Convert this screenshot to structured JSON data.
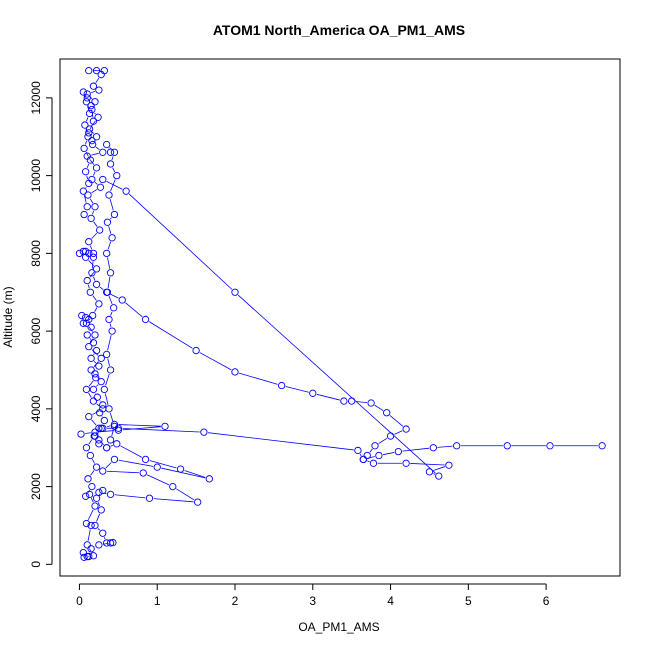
{
  "chart_data": {
    "type": "scatter",
    "title": "ATOM1 North_America OA_PM1_AMS",
    "xlabel": "OA_PM1_AMS",
    "ylabel": "Altitude (m)",
    "xlim": [
      -0.25,
      6.95
    ],
    "ylim": [
      -300,
      13000
    ],
    "xticks": [
      0,
      1,
      2,
      3,
      4,
      5,
      6
    ],
    "yticks": [
      0,
      2000,
      4000,
      6000,
      8000,
      10000,
      12000
    ],
    "grid": false,
    "legend": "none",
    "marker": "open-circle",
    "connected": true,
    "color": "#0000ff",
    "series": [
      {
        "points": [
          [
            0.12,
            200
          ],
          [
            0.06,
            180
          ],
          [
            0.18,
            220
          ],
          [
            0.1,
            500
          ],
          [
            0.15,
            1000
          ],
          [
            0.09,
            1050
          ],
          [
            0.2,
            1500
          ],
          [
            0.13,
            1800
          ],
          [
            0.08,
            1750
          ],
          [
            0.16,
            2000
          ],
          [
            0.11,
            2200
          ],
          [
            0.22,
            2500
          ],
          [
            0.14,
            2800
          ],
          [
            0.09,
            3000
          ],
          [
            0.19,
            3300
          ],
          [
            0.25,
            3500
          ],
          [
            0.12,
            3800
          ],
          [
            0.3,
            4000
          ],
          [
            0.18,
            4200
          ],
          [
            0.09,
            4500
          ],
          [
            0.21,
            4800
          ],
          [
            0.15,
            5000
          ],
          [
            0.28,
            5300
          ],
          [
            0.12,
            5600
          ],
          [
            0.2,
            5900
          ],
          [
            0.09,
            6200
          ],
          [
            0.17,
            6400
          ],
          [
            0.25,
            6700
          ],
          [
            0.14,
            7000
          ],
          [
            0.1,
            7300
          ],
          [
            0.22,
            7600
          ],
          [
            0.08,
            7900
          ],
          [
            0.18,
            8000
          ],
          [
            0.12,
            8300
          ],
          [
            0.26,
            8600
          ],
          [
            0.15,
            8900
          ],
          [
            0.2,
            9200
          ],
          [
            0.11,
            9500
          ],
          [
            0.27,
            9700
          ],
          [
            0.16,
            9900
          ],
          [
            0.22,
            10200
          ],
          [
            0.1,
            10500
          ],
          [
            0.3,
            10600
          ],
          [
            0.17,
            10800
          ],
          [
            0.22,
            11000
          ],
          [
            0.13,
            11200
          ],
          [
            0.24,
            11500
          ],
          [
            0.16,
            11700
          ],
          [
            0.2,
            11900
          ],
          [
            0.1,
            12100
          ],
          [
            0.25,
            12200
          ],
          [
            0.18,
            12300
          ],
          [
            0.28,
            12600
          ],
          [
            0.22,
            12700
          ],
          [
            0.12,
            12700
          ],
          [
            0.32,
            12700
          ]
        ]
      },
      {
        "points": [
          [
            0.08,
            8050
          ],
          [
            0.0,
            8000
          ],
          [
            0.05,
            8050
          ],
          [
            0.12,
            8000
          ],
          [
            0.18,
            7900
          ],
          [
            0.16,
            7500
          ],
          [
            0.22,
            7200
          ],
          [
            0.35,
            7000
          ],
          [
            0.55,
            6800
          ],
          [
            0.85,
            6300
          ],
          [
            1.5,
            5500
          ],
          [
            2.0,
            4950
          ],
          [
            2.6,
            4600
          ],
          [
            3.0,
            4400
          ],
          [
            3.4,
            4200
          ],
          [
            3.5,
            4200
          ],
          [
            3.75,
            4150
          ],
          [
            3.95,
            3900
          ],
          [
            4.2,
            3480
          ],
          [
            4.0,
            3300
          ],
          [
            3.8,
            3050
          ],
          [
            3.7,
            2800
          ],
          [
            3.65,
            2700
          ],
          [
            3.85,
            2800
          ],
          [
            4.1,
            2900
          ],
          [
            4.55,
            3000
          ],
          [
            4.85,
            3050
          ],
          [
            5.5,
            3050
          ],
          [
            6.05,
            3050
          ],
          [
            6.72,
            3050
          ]
        ]
      },
      {
        "points": [
          [
            0.02,
            3350
          ],
          [
            0.2,
            3400
          ],
          [
            0.5,
            3450
          ],
          [
            1.1,
            3550
          ],
          [
            0.45,
            3600
          ],
          [
            0.3,
            3500
          ],
          [
            0.5,
            3500
          ],
          [
            1.6,
            3400
          ],
          [
            3.58,
            2930
          ],
          [
            3.65,
            2700
          ],
          [
            3.78,
            2600
          ],
          [
            4.2,
            2600
          ],
          [
            4.75,
            2550
          ],
          [
            4.5,
            2380
          ],
          [
            4.62,
            2270
          ],
          [
            2.0,
            7000
          ],
          [
            0.6,
            9600
          ],
          [
            0.3,
            9900
          ]
        ]
      },
      {
        "points": [
          [
            0.25,
            3200
          ],
          [
            0.35,
            3000
          ],
          [
            0.48,
            3100
          ],
          [
            0.85,
            2700
          ],
          [
            1.3,
            2450
          ],
          [
            1.67,
            2200
          ],
          [
            1.0,
            2500
          ],
          [
            0.45,
            2700
          ],
          [
            0.3,
            2400
          ],
          [
            0.82,
            2350
          ],
          [
            1.2,
            2000
          ],
          [
            1.52,
            1600
          ],
          [
            0.9,
            1700
          ],
          [
            0.4,
            1800
          ],
          [
            0.25,
            1850
          ]
        ]
      },
      {
        "points": [
          [
            0.3,
            1900
          ],
          [
            0.22,
            1700
          ],
          [
            0.28,
            1400
          ],
          [
            0.2,
            1000
          ],
          [
            0.3,
            800
          ],
          [
            0.35,
            550
          ],
          [
            0.4,
            550
          ],
          [
            0.43,
            560
          ],
          [
            0.25,
            500
          ],
          [
            0.15,
            400
          ],
          [
            0.1,
            200
          ],
          [
            0.05,
            300
          ]
        ]
      },
      {
        "points": [
          [
            0.35,
            3000
          ],
          [
            0.4,
            3200
          ],
          [
            0.45,
            3550
          ],
          [
            0.38,
            4000
          ],
          [
            0.32,
            4500
          ],
          [
            0.4,
            5000
          ],
          [
            0.35,
            5400
          ],
          [
            0.42,
            6000
          ],
          [
            0.38,
            6300
          ],
          [
            0.44,
            6600
          ],
          [
            0.36,
            7000
          ],
          [
            0.4,
            7500
          ],
          [
            0.35,
            8000
          ],
          [
            0.42,
            8400
          ],
          [
            0.36,
            8800
          ],
          [
            0.45,
            9000
          ],
          [
            0.38,
            9500
          ],
          [
            0.48,
            10000
          ],
          [
            0.4,
            10300
          ],
          [
            0.45,
            10600
          ],
          [
            0.35,
            10800
          ],
          [
            0.4,
            10600
          ]
        ]
      },
      {
        "points": [
          [
            0.05,
            6200
          ],
          [
            0.08,
            6350
          ],
          [
            0.03,
            6400
          ],
          [
            0.12,
            6300
          ],
          [
            0.15,
            6100
          ],
          [
            0.1,
            5900
          ],
          [
            0.18,
            5700
          ],
          [
            0.22,
            5500
          ],
          [
            0.15,
            5300
          ],
          [
            0.25,
            5100
          ],
          [
            0.2,
            4900
          ],
          [
            0.28,
            4700
          ],
          [
            0.18,
            4500
          ],
          [
            0.23,
            4300
          ],
          [
            0.3,
            4100
          ],
          [
            0.26,
            3900
          ],
          [
            0.32,
            3700
          ],
          [
            0.28,
            3500
          ],
          [
            0.2,
            3300
          ],
          [
            0.25,
            3100
          ]
        ]
      },
      {
        "points": [
          [
            0.06,
            9000
          ],
          [
            0.1,
            9200
          ],
          [
            0.05,
            9600
          ],
          [
            0.12,
            9800
          ],
          [
            0.08,
            10100
          ],
          [
            0.14,
            10400
          ],
          [
            0.06,
            10700
          ],
          [
            0.11,
            11000
          ],
          [
            0.07,
            11300
          ],
          [
            0.13,
            11600
          ],
          [
            0.09,
            11900
          ],
          [
            0.05,
            12150
          ],
          [
            0.1,
            12000
          ],
          [
            0.15,
            11800
          ],
          [
            0.18,
            11400
          ],
          [
            0.12,
            11100
          ],
          [
            0.16,
            10900
          ]
        ]
      }
    ]
  }
}
